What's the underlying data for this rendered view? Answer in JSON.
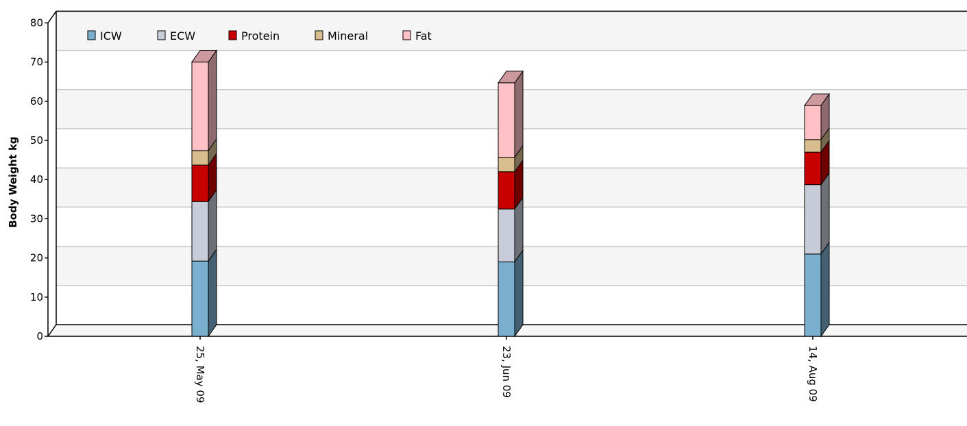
{
  "chart_data": {
    "type": "bar",
    "stacked": true,
    "three_d": true,
    "categories": [
      "25, May 09",
      "23, Jun 09",
      "14, Aug 09"
    ],
    "series": [
      {
        "name": "ICW",
        "color": "#7BAFD0",
        "values": [
          19.2,
          19.0,
          21.0
        ]
      },
      {
        "name": "ECW",
        "color": "#C8CCD8",
        "values": [
          15.2,
          13.5,
          17.7
        ]
      },
      {
        "name": "Protein",
        "color": "#C80000",
        "values": [
          9.3,
          9.5,
          8.3
        ]
      },
      {
        "name": "Mineral",
        "color": "#D8BE8E",
        "values": [
          3.7,
          3.7,
          3.2
        ]
      },
      {
        "name": "Fat",
        "color": "#FFC0C6",
        "values": [
          22.6,
          19.0,
          8.7
        ]
      }
    ],
    "xlabel": "",
    "ylabel": "Body Weight kg",
    "ylim": [
      0,
      80
    ],
    "yticks": [
      0,
      10,
      20,
      30,
      40,
      50,
      60,
      70,
      80
    ],
    "grid": true,
    "legend": "top-left"
  }
}
